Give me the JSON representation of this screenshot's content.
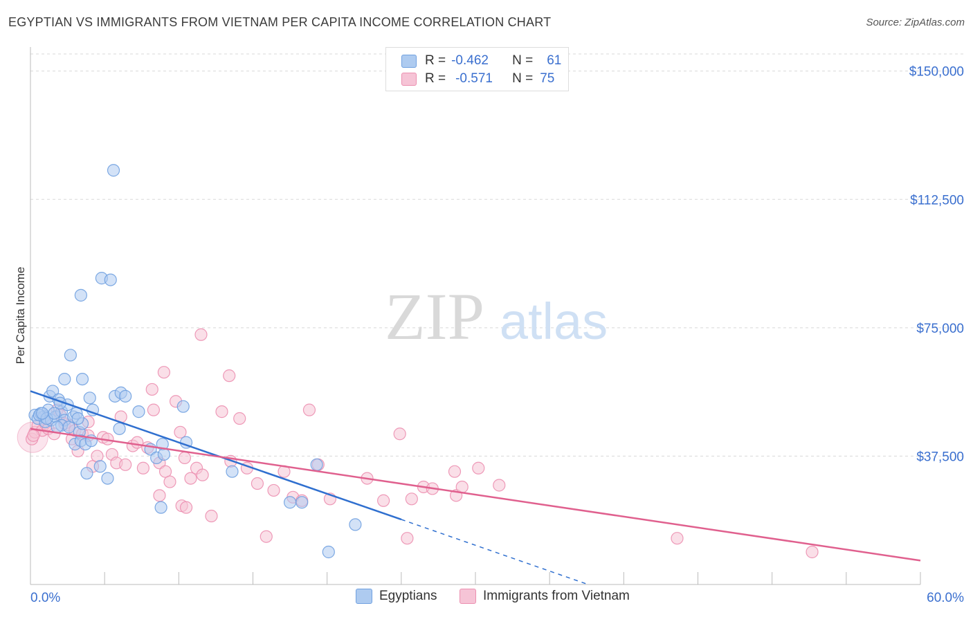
{
  "title": "EGYPTIAN VS IMMIGRANTS FROM VIETNAM PER CAPITA INCOME CORRELATION CHART",
  "source": "Source: ZipAtlas.com",
  "watermark": {
    "zip": "ZIP",
    "atlas": "atlas"
  },
  "legend": {
    "rows": [
      {
        "r_label": "R =",
        "r_value": "-0.462",
        "n_label": "N =",
        "n_value": "61"
      },
      {
        "r_label": "R =",
        "r_value": "-0.571",
        "n_label": "N =",
        "n_value": "75"
      }
    ]
  },
  "bottom_legend": [
    "Egyptians",
    "Immigrants from Vietnam"
  ],
  "colors": {
    "blue": "#6fa0e0",
    "blue_fill": "#aecbf0",
    "blue_line": "#2f6fcf",
    "pink": "#ec8fb0",
    "pink_fill": "#f6c4d6",
    "pink_line": "#e0608e",
    "tick_label": "#3a6fcf",
    "grid": "#d8d8d8"
  },
  "chart_data": {
    "type": "scatter",
    "title": "EGYPTIAN VS IMMIGRANTS FROM VIETNAM PER CAPITA INCOME CORRELATION CHART",
    "xlabel": "",
    "ylabel": "Per Capita Income",
    "xlim": [
      0,
      60
    ],
    "ylim": [
      0,
      155000
    ],
    "x_tick_labels": [
      "0.0%",
      "60.0%"
    ],
    "y_ticks": [
      37500,
      75000,
      112500,
      150000
    ],
    "y_tick_labels": [
      "$37,500",
      "$75,000",
      "$112,500",
      "$150,000"
    ],
    "grid": true,
    "legend_position": "top-center",
    "series": [
      {
        "name": "Egyptians",
        "r": -0.462,
        "n": 61,
        "trend": {
          "x": [
            0,
            25
          ],
          "y": [
            56500,
            19000
          ],
          "dashed_to": [
            37.6,
            0
          ]
        },
        "points": [
          [
            0.3,
            49500
          ],
          [
            0.5,
            48500
          ],
          [
            0.7,
            50000
          ],
          [
            0.9,
            49000
          ],
          [
            1.0,
            47500
          ],
          [
            1.2,
            51000
          ],
          [
            1.3,
            55000
          ],
          [
            1.4,
            48000
          ],
          [
            1.5,
            56500
          ],
          [
            1.7,
            49000
          ],
          [
            1.9,
            54000
          ],
          [
            2.1,
            50500
          ],
          [
            2.3,
            48000
          ],
          [
            2.5,
            52500
          ],
          [
            2.1,
            46500
          ],
          [
            2.6,
            46000
          ],
          [
            2.9,
            49000
          ],
          [
            3.1,
            50000
          ],
          [
            3.3,
            44500
          ],
          [
            3.5,
            47000
          ],
          [
            3.0,
            41000
          ],
          [
            3.4,
            42000
          ],
          [
            3.7,
            41000
          ],
          [
            4.1,
            42000
          ],
          [
            3.8,
            32500
          ],
          [
            4.2,
            51000
          ],
          [
            4.0,
            54500
          ],
          [
            4.7,
            34500
          ],
          [
            5.2,
            31000
          ],
          [
            5.7,
            55000
          ],
          [
            6.1,
            56000
          ],
          [
            6.4,
            55000
          ],
          [
            6.0,
            45500
          ],
          [
            7.3,
            50500
          ],
          [
            8.1,
            39500
          ],
          [
            8.5,
            37000
          ],
          [
            8.9,
            41000
          ],
          [
            9.0,
            38000
          ],
          [
            8.8,
            22500
          ],
          [
            10.3,
            52000
          ],
          [
            10.5,
            41500
          ],
          [
            13.6,
            33000
          ],
          [
            17.5,
            24000
          ],
          [
            18.3,
            24000
          ],
          [
            19.3,
            35000
          ],
          [
            20.1,
            9500
          ],
          [
            21.9,
            17500
          ],
          [
            2.7,
            67000
          ],
          [
            3.4,
            84500
          ],
          [
            4.8,
            89500
          ],
          [
            5.4,
            89000
          ],
          [
            5.6,
            121000
          ],
          [
            3.5,
            60000
          ],
          [
            2.3,
            60000
          ],
          [
            0.6,
            49500
          ],
          [
            1.1,
            48500
          ],
          [
            1.6,
            50000
          ],
          [
            0.8,
            50000
          ],
          [
            1.8,
            46000
          ],
          [
            2.0,
            53000
          ],
          [
            3.2,
            48500
          ]
        ]
      },
      {
        "name": "Immigrants from Vietnam",
        "r": -0.571,
        "n": 75,
        "trend": {
          "x": [
            0,
            60
          ],
          "y": [
            45500,
            7000
          ]
        },
        "points": [
          [
            0.1,
            42500
          ],
          [
            0.3,
            44500
          ],
          [
            0.5,
            46500
          ],
          [
            0.8,
            45000
          ],
          [
            1.0,
            47000
          ],
          [
            1.2,
            45500
          ],
          [
            1.6,
            44000
          ],
          [
            1.8,
            51000
          ],
          [
            2.0,
            49500
          ],
          [
            2.3,
            47000
          ],
          [
            2.6,
            46500
          ],
          [
            2.8,
            42500
          ],
          [
            3.0,
            45000
          ],
          [
            3.2,
            39000
          ],
          [
            3.5,
            44000
          ],
          [
            3.9,
            43500
          ],
          [
            4.2,
            34500
          ],
          [
            4.5,
            37500
          ],
          [
            4.9,
            43000
          ],
          [
            5.2,
            42500
          ],
          [
            5.5,
            38000
          ],
          [
            5.8,
            35500
          ],
          [
            6.1,
            49000
          ],
          [
            6.4,
            35000
          ],
          [
            6.9,
            40500
          ],
          [
            7.2,
            41500
          ],
          [
            7.6,
            34000
          ],
          [
            7.9,
            40000
          ],
          [
            8.3,
            51000
          ],
          [
            8.7,
            35500
          ],
          [
            9.1,
            33000
          ],
          [
            9.4,
            30000
          ],
          [
            9.8,
            53500
          ],
          [
            10.1,
            44500
          ],
          [
            10.4,
            37000
          ],
          [
            10.8,
            31000
          ],
          [
            11.2,
            34000
          ],
          [
            11.6,
            32000
          ],
          [
            12.2,
            20000
          ],
          [
            12.9,
            50500
          ],
          [
            13.5,
            36000
          ],
          [
            14.1,
            48500
          ],
          [
            14.6,
            34000
          ],
          [
            15.3,
            29500
          ],
          [
            15.9,
            14000
          ],
          [
            16.4,
            27500
          ],
          [
            17.1,
            33000
          ],
          [
            17.7,
            25500
          ],
          [
            18.3,
            24500
          ],
          [
            18.8,
            51000
          ],
          [
            19.4,
            35000
          ],
          [
            20.2,
            25000
          ],
          [
            22.7,
            31000
          ],
          [
            23.8,
            24500
          ],
          [
            24.9,
            44000
          ],
          [
            25.4,
            13500
          ],
          [
            25.7,
            25000
          ],
          [
            26.5,
            28500
          ],
          [
            27.1,
            28000
          ],
          [
            28.7,
            26000
          ],
          [
            29.1,
            28500
          ],
          [
            28.6,
            33000
          ],
          [
            30.2,
            34000
          ],
          [
            31.6,
            29000
          ],
          [
            9.0,
            62000
          ],
          [
            8.2,
            57000
          ],
          [
            13.4,
            61000
          ],
          [
            11.5,
            73000
          ],
          [
            8.7,
            26000
          ],
          [
            10.2,
            23000
          ],
          [
            10.5,
            22500
          ],
          [
            3.9,
            47500
          ],
          [
            43.6,
            13500
          ],
          [
            52.7,
            9500
          ],
          [
            0.2,
            43500
          ]
        ]
      }
    ]
  }
}
